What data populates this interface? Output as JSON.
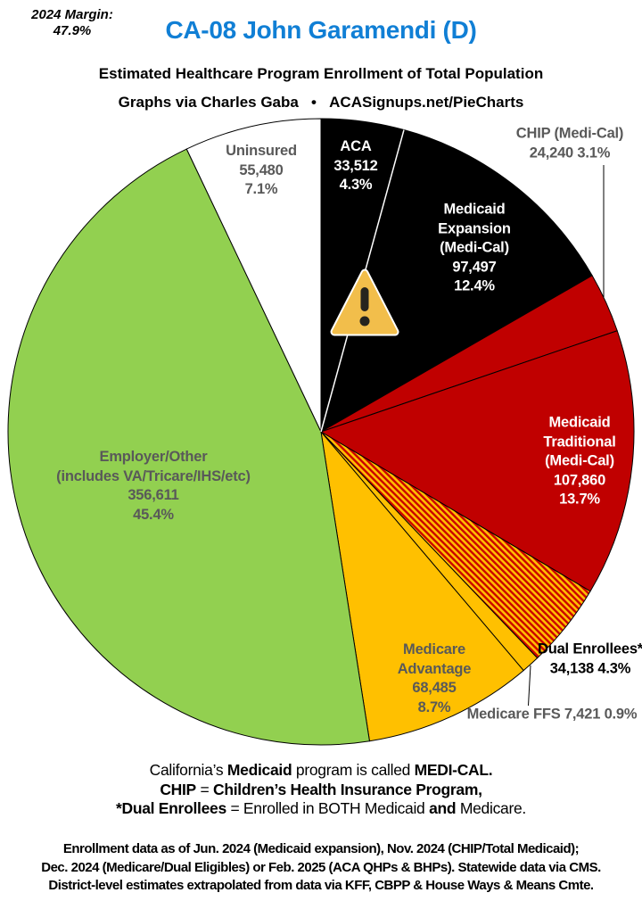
{
  "header": {
    "margin_note_lines": [
      "2024 Margin:",
      "47.9%"
    ],
    "title": "CA-08 John Garamendi (D)",
    "title_color": "#107FD5",
    "subtitle": "Estimated Healthcare Program Enrollment of Total Population",
    "byline": "Graphs via Charles Gaba   •   ACASignups.net/PieCharts"
  },
  "chart_data": {
    "type": "pie",
    "title": "Estimated Healthcare Program Enrollment of Total Population",
    "total_population": 785244,
    "start_angle": "12 o'clock",
    "direction": "clockwise",
    "outline_color": "#000000",
    "divider_after_first_segment_color": "#FFFFFF",
    "segments": [
      {
        "name": "ACA",
        "value": 33512,
        "pct": 4.3,
        "color": "#000000",
        "text_color": "#FFFFFF",
        "label_lines": [
          "ACA",
          "33,512",
          "4.3%"
        ]
      },
      {
        "name": "Medicaid Expansion (Medi-Cal)",
        "value": 97497,
        "pct": 12.4,
        "color": "#000000",
        "text_color": "#FFFFFF",
        "label_lines": [
          "Medicaid",
          "Expansion",
          "(Medi-Cal)",
          "97,497",
          "12.4%"
        ]
      },
      {
        "name": "CHIP (Medi-Cal)",
        "value": 24240,
        "pct": 3.1,
        "color": "#C00000",
        "text_color": "#595959",
        "label_outside": true,
        "label_lines": [
          "CHIP (Medi-Cal)",
          "24,240 3.1%"
        ]
      },
      {
        "name": "Medicaid Traditional (Medi-Cal)",
        "value": 107860,
        "pct": 13.7,
        "color": "#C00000",
        "text_color": "#FFFFFF",
        "label_lines": [
          "Medicaid",
          "Traditional",
          "(Medi-Cal)",
          "107,860",
          "13.7%"
        ]
      },
      {
        "name": "Dual Enrollees*",
        "value": 34138,
        "pct": 4.3,
        "color": "hatch",
        "text_color": "#000000",
        "label_outside": true,
        "label_lines": [
          "Dual Enrollees*",
          "34,138 4.3%"
        ]
      },
      {
        "name": "Medicare FFS",
        "value": 7421,
        "pct": 0.9,
        "color": "#FFC000",
        "text_color": "#595959",
        "label_outside": true,
        "label_lines": [
          "Medicare FFS 7,421 0.9%"
        ]
      },
      {
        "name": "Medicare Advantage",
        "value": 68485,
        "pct": 8.7,
        "color": "#FFC000",
        "text_color": "#595959",
        "label_lines": [
          "Medicare",
          "Advantage",
          "68,485",
          "8.7%"
        ]
      },
      {
        "name": "Employer/Other (includes VA/Tricare/IHS/etc)",
        "value": 356611,
        "pct": 45.4,
        "color": "#92D050",
        "text_color": "#595959",
        "label_lines": [
          "Employer/Other",
          "(includes VA/Tricare/IHS/etc)",
          "356,611",
          "45.4%"
        ]
      },
      {
        "name": "Uninsured",
        "value": 55480,
        "pct": 7.1,
        "color": "#FFFFFF",
        "text_color": "#595959",
        "label_lines": [
          "Uninsured",
          "55,480",
          "7.1%"
        ]
      }
    ],
    "hatch": {
      "background": "#FFC000",
      "stripe": "#CC0000"
    }
  },
  "warning_icon": {
    "name": "triangle-exclamation",
    "fill": "#F2BE4B",
    "outline": "#FFFFFF",
    "mark": "#26241E"
  },
  "notes": {
    "lines": [
      [
        {
          "t": "California’s ",
          "b": false
        },
        {
          "t": "Medicaid",
          "b": true
        },
        {
          "t": " program is called ",
          "b": false
        },
        {
          "t": "MEDI-CAL.",
          "b": true
        }
      ],
      [
        {
          "t": "CHIP",
          "b": true
        },
        {
          "t": " = ",
          "b": false
        },
        {
          "t": "Children’s Health Insurance Program,",
          "b": true
        }
      ],
      [
        {
          "t": "*Dual Enrollees",
          "b": true
        },
        {
          "t": " = Enrolled in BOTH Medicaid ",
          "b": false
        },
        {
          "t": "and",
          "b": true
        },
        {
          "t": " Medicare.",
          "b": false
        }
      ]
    ]
  },
  "footer": {
    "lines": [
      "Enrollment data as of Jun. 2024 (Medicaid expansion), Nov. 2024 (CHIP/Total Medicaid);",
      "Dec. 2024 (Medicare/Dual Eligibles) or Feb. 2025 (ACA QHPs & BHPs). Statewide data via CMS.",
      "District-level estimates extrapolated from data via KFF, CBPP & House Ways & Means Cmte."
    ]
  }
}
